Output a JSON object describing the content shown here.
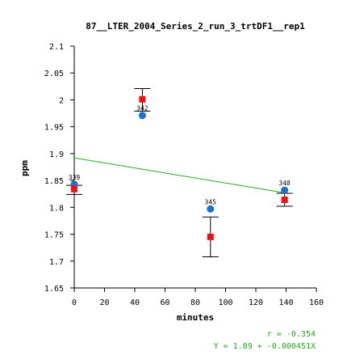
{
  "chart_data": {
    "type": "scatter",
    "title": "87__LTER_2004_Series_2_run_3_trtDF1__rep1",
    "xlabel": "minutes",
    "ylabel": "ppm",
    "xlim": [
      0,
      160
    ],
    "ylim": [
      1.65,
      2.1
    ],
    "xticks": [
      0,
      20,
      40,
      60,
      80,
      100,
      120,
      140,
      160
    ],
    "yticks": [
      1.65,
      1.7,
      1.75,
      1.8,
      1.85,
      1.9,
      1.95,
      2,
      2.05,
      2.1
    ],
    "ytick_labels": [
      "1.65",
      "1.7",
      "1.75",
      "1.8",
      "1.85",
      "1.9",
      "1.95",
      "2",
      "2.05",
      "2.1"
    ],
    "grid": false,
    "colors": {
      "blue_points": "#1f6fd1",
      "red_points": "#ee1111",
      "fit_line": "#22aa22",
      "stats_text": "#22aa22",
      "axis": "#000000"
    },
    "blue_series": [
      {
        "x": 0,
        "y": 1.843,
        "label": "339"
      },
      {
        "x": 45,
        "y": 1.971,
        "label": "342"
      },
      {
        "x": 90,
        "y": 1.797,
        "label": "345"
      },
      {
        "x": 139,
        "y": 1.832,
        "label": "348"
      }
    ],
    "red_series": [
      {
        "x": 0,
        "y": 1.834
      },
      {
        "x": 45,
        "y": 2.001
      },
      {
        "x": 90,
        "y": 1.745
      },
      {
        "x": 139,
        "y": 1.814
      }
    ],
    "error_bars": [
      {
        "x": 0,
        "low": 1.824,
        "high": 1.841
      },
      {
        "x": 45,
        "low": 1.979,
        "high": 2.021
      },
      {
        "x": 90,
        "low": 1.708,
        "high": 1.782
      },
      {
        "x": 139,
        "low": 1.802,
        "high": 1.826
      }
    ],
    "fit_line": {
      "x": [
        0,
        139
      ],
      "y": [
        1.892,
        1.827
      ]
    },
    "stats": {
      "r": "r = -0.354",
      "equation": "Y = 1.89 + -0.000451X"
    }
  }
}
